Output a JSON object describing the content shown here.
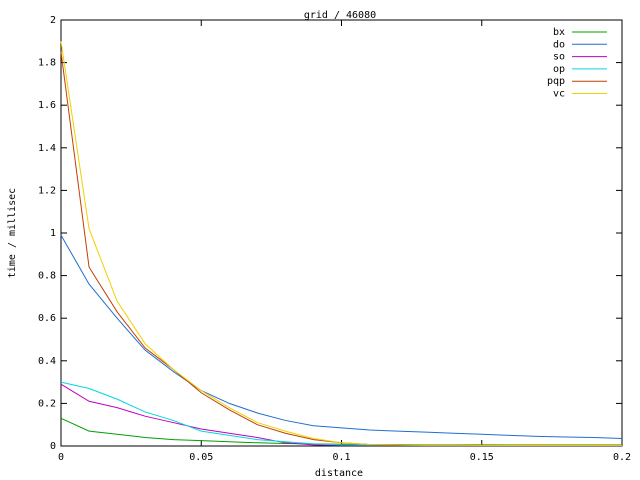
{
  "chart_data": {
    "type": "line",
    "title": "grid / 46080",
    "x_label": "distance",
    "y_label": "time / millisec",
    "x": [
      0,
      0.01,
      0.02,
      0.03,
      0.04,
      0.05,
      0.06,
      0.07,
      0.08,
      0.09,
      0.1,
      0.11,
      0.12,
      0.13,
      0.14,
      0.15,
      0.16,
      0.17,
      0.18,
      0.19,
      0.2
    ],
    "xlim": [
      0,
      0.2
    ],
    "xticks": [
      0,
      0.05,
      0.1,
      0.15,
      0.2
    ],
    "ylim": [
      0,
      2
    ],
    "yticks": [
      0,
      0.2,
      0.4,
      0.6,
      0.8,
      1,
      1.2,
      1.4,
      1.6,
      1.8,
      2
    ],
    "grid": false,
    "legend": "top-right",
    "series": [
      {
        "name": "bx",
        "color": "#00a000",
        "values": [
          0.13,
          0.07,
          0.055,
          0.04,
          0.03,
          0.025,
          0.02,
          0.015,
          0.012,
          0.01,
          0.008,
          0.007,
          0.007,
          0.006,
          0.006,
          0.006,
          0.005,
          0.005,
          0.005,
          0.005,
          0.005
        ]
      },
      {
        "name": "do",
        "color": "#1e6fd0",
        "values": [
          0.99,
          0.76,
          0.6,
          0.45,
          0.35,
          0.26,
          0.2,
          0.155,
          0.12,
          0.095,
          0.085,
          0.075,
          0.07,
          0.065,
          0.06,
          0.055,
          0.05,
          0.045,
          0.042,
          0.04,
          0.035
        ]
      },
      {
        "name": "so",
        "color": "#c000c0",
        "values": [
          0.29,
          0.21,
          0.18,
          0.14,
          0.11,
          0.08,
          0.06,
          0.04,
          0.015,
          0.005,
          0.003,
          0.003,
          0.003,
          0.002,
          0.002,
          0.002,
          0.002,
          0.002,
          0.002,
          0.002,
          0.002
        ]
      },
      {
        "name": "op",
        "color": "#00d8e0",
        "values": [
          0.3,
          0.27,
          0.22,
          0.16,
          0.12,
          0.07,
          0.05,
          0.03,
          0.02,
          0.01,
          0.005,
          0.004,
          0.004,
          0.003,
          0.003,
          0.003,
          0.003,
          0.003,
          0.003,
          0.003,
          0.003
        ]
      },
      {
        "name": "pqp",
        "color": "#c04000",
        "values": [
          1.85,
          0.84,
          0.63,
          0.46,
          0.36,
          0.25,
          0.17,
          0.1,
          0.06,
          0.03,
          0.015,
          0.007,
          0.005,
          0.004,
          0.004,
          0.003,
          0.003,
          0.003,
          0.003,
          0.003,
          0.003
        ]
      },
      {
        "name": "vc",
        "color": "#f0d000",
        "values": [
          1.9,
          1.02,
          0.68,
          0.48,
          0.36,
          0.26,
          0.18,
          0.11,
          0.07,
          0.035,
          0.015,
          0.007,
          0.005,
          0.004,
          0.004,
          0.003,
          0.003,
          0.003,
          0.003,
          0.003,
          0.003
        ]
      }
    ]
  }
}
